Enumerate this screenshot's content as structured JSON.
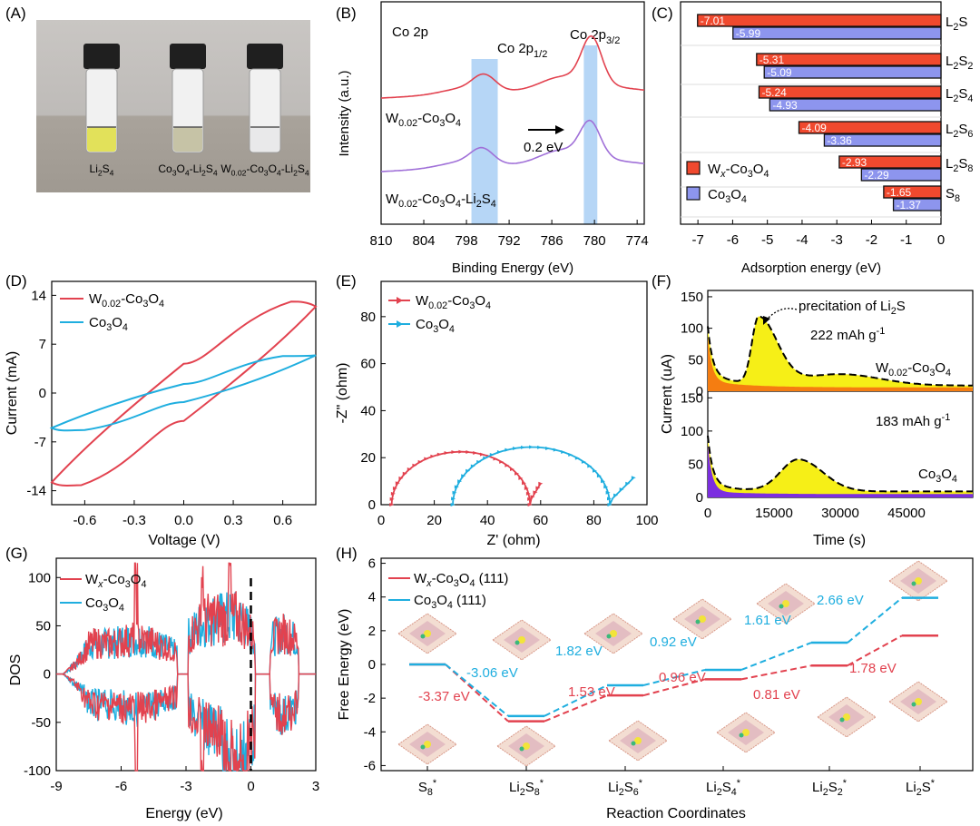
{
  "panels": {
    "A": {
      "label": "(A)",
      "vials": [
        {
          "label": "Li2S4",
          "color": "#e2e15a"
        },
        {
          "label": "Co3O4-Li2S4",
          "color": "#c6c3a6"
        },
        {
          "label": "W0.02-Co3O4-Li2S4",
          "color": "#e9e9ea"
        }
      ]
    },
    "B": {
      "label": "(B)"
    },
    "C": {
      "label": "(C)"
    },
    "D": {
      "label": "(D)"
    },
    "E": {
      "label": "(E)"
    },
    "F": {
      "label": "(F)"
    },
    "G": {
      "label": "(G)"
    },
    "H": {
      "label": "(H)"
    }
  },
  "colors": {
    "red": "#e2424f",
    "blue": "#1faedf",
    "purple": "#a070d8",
    "barRed": "#f0492e",
    "barBlue": "#8d95ee",
    "yellow": "#f6ef17",
    "orange": "#f57d11",
    "violet": "#7c2ee0"
  },
  "chart_data": [
    {
      "panel": "B",
      "type": "line",
      "title": "Co 2p",
      "xlabel": "Binding Energy (eV)",
      "ylabel": "Intensity (a.u.)",
      "xlim": [
        810,
        773
      ],
      "xticks": [
        810,
        804,
        798,
        792,
        786,
        780,
        774
      ],
      "peak_labels": [
        "Co 2p1/2",
        "Co 2p3/2"
      ],
      "shift_label": "0.2 eV",
      "series": [
        {
          "name": "W0.02-Co3O4",
          "color": "#e2424f",
          "peaks": [
            795.5,
            780.4
          ]
        },
        {
          "name": "W0.02-Co3O4-Li2S4",
          "color": "#a070d8",
          "peaks": [
            795.8,
            780.6
          ]
        }
      ]
    },
    {
      "panel": "C",
      "type": "bar",
      "xlabel": "Adsorption energy (eV)",
      "xlim": [
        -7.5,
        0
      ],
      "xticks": [
        -7,
        -6,
        -5,
        -4,
        -3,
        -2,
        -1,
        0
      ],
      "categories": [
        "L2S",
        "L2S2",
        "L2S4",
        "L2S6",
        "L2S8",
        "S8"
      ],
      "series": [
        {
          "name": "Wx-Co3O4",
          "color": "#f0492e",
          "values": [
            -7.01,
            -5.31,
            -5.24,
            -4.09,
            -2.93,
            -1.65
          ],
          "labels": [
            "-7.01",
            "-5.31",
            "-5.24",
            "-4.09",
            "-2.93",
            "-1.65"
          ]
        },
        {
          "name": "Co3O4",
          "color": "#8d95ee",
          "values": [
            -5.99,
            -5.09,
            -4.93,
            -3.36,
            -2.29,
            -1.37
          ],
          "labels": [
            "-5.99",
            "-5.09",
            "-4.93",
            "-3.36",
            "-2.29",
            "-1.37"
          ]
        }
      ]
    },
    {
      "panel": "D",
      "type": "line",
      "xlabel": "Voltage (V)",
      "ylabel": "Current (mA)",
      "xlim": [
        -0.8,
        0.8
      ],
      "ylim": [
        -16,
        16
      ],
      "xticks": [
        "-0.6",
        "-0.3",
        "0.0",
        "0.3",
        "0.6"
      ],
      "yticks": [
        "-14",
        "-7",
        "0",
        "7",
        "14"
      ],
      "series": [
        {
          "name": "W0.02-Co3O4",
          "color": "#e2424f",
          "vertices": [
            [
              -0.8,
              -12.8
            ],
            [
              -0.62,
              -13.2
            ],
            [
              0.0,
              -4.0
            ],
            [
              0.8,
              12.4
            ],
            [
              0.65,
              13.1
            ],
            [
              0.0,
              4.2
            ]
          ]
        },
        {
          "name": "Co3O4",
          "color": "#1faedf",
          "vertices": [
            [
              -0.8,
              -5.0
            ],
            [
              -0.6,
              -5.3
            ],
            [
              0.0,
              -1.3
            ],
            [
              0.8,
              5.4
            ],
            [
              0.6,
              5.3
            ],
            [
              0.0,
              1.3
            ]
          ]
        }
      ]
    },
    {
      "panel": "E",
      "type": "line",
      "xlabel": "Z' (ohm)",
      "ylabel": "-Z\" (ohm)",
      "xlim": [
        0,
        100
      ],
      "ylim": [
        0,
        95
      ],
      "xticks": [
        "0",
        "20",
        "40",
        "60",
        "80",
        "100"
      ],
      "yticks": [
        "0",
        "20",
        "40",
        "60",
        "80"
      ],
      "series": [
        {
          "name": "W0.02-Co3O4",
          "color": "#e2424f",
          "semicircle": {
            "x_start": 4,
            "x_end": 56,
            "height": 22.5
          },
          "tail_end": [
            60,
            9
          ]
        },
        {
          "name": "Co3O4",
          "color": "#1faedf",
          "semicircle": {
            "x_start": 27,
            "x_end": 86,
            "height": 24.5
          },
          "tail_end": [
            95,
            11.5
          ]
        }
      ]
    },
    {
      "panel": "F",
      "type": "area",
      "xlabel": "Time (s)",
      "ylabel": "Current (uA)",
      "xlim": [
        0,
        60000
      ],
      "xticks": [
        "0",
        "15000",
        "30000",
        "45000"
      ],
      "yticks": [
        "0",
        "50",
        "100",
        "150"
      ],
      "annotation": "precitation of Li2S",
      "subplots": [
        {
          "name": "W0.02-Co3O4",
          "capacity": "222 mAh g-1",
          "fill": "#f57d11",
          "peak": [
            11500,
            130
          ]
        },
        {
          "name": "Co3O4",
          "capacity": "183 mAh g-1",
          "fill": "#7c2ee0",
          "peak": [
            20500,
            63
          ]
        }
      ]
    },
    {
      "panel": "G",
      "type": "line",
      "xlabel": "Energy (eV)",
      "ylabel": "DOS",
      "xlim": [
        -9,
        3
      ],
      "ylim": [
        -100,
        120
      ],
      "xticks": [
        "-9",
        "-6",
        "-3",
        "0",
        "3"
      ],
      "yticks": [
        "-100",
        "-50",
        "0",
        "50",
        "100"
      ],
      "fermi_level": 0,
      "series": [
        {
          "name": "Wx-Co3O4",
          "color": "#e2424f"
        },
        {
          "name": "Co3O4",
          "color": "#1faedf"
        }
      ]
    },
    {
      "panel": "H",
      "type": "line",
      "xlabel": "Reaction Coordinates",
      "ylabel": "Free Energy (eV)",
      "ylim": [
        -6.3,
        6.3
      ],
      "yticks": [
        "-6",
        "-4",
        "-2",
        "0",
        "2",
        "4",
        "6"
      ],
      "categories": [
        "S8*",
        "Li2S8*",
        "Li2S6*",
        "Li2S4*",
        "Li2S2*",
        "Li2S*"
      ],
      "series": [
        {
          "name": "Wx-Co3O4 (111)",
          "color": "#e2424f",
          "values": [
            0,
            -3.37,
            -1.84,
            -0.88,
            -0.07,
            1.71
          ],
          "step_labels": [
            "-3.37 eV",
            "1.53 eV",
            "0.96 eV",
            "0.81 eV",
            "1.78 eV"
          ]
        },
        {
          "name": "Co3O4 (111)",
          "color": "#1faedf",
          "values": [
            0,
            -3.06,
            -1.24,
            -0.32,
            1.29,
            3.95
          ],
          "step_labels": [
            "-3.06 eV",
            "1.82 eV",
            "0.92 eV",
            "1.61 eV",
            "2.66 eV"
          ]
        }
      ]
    }
  ]
}
